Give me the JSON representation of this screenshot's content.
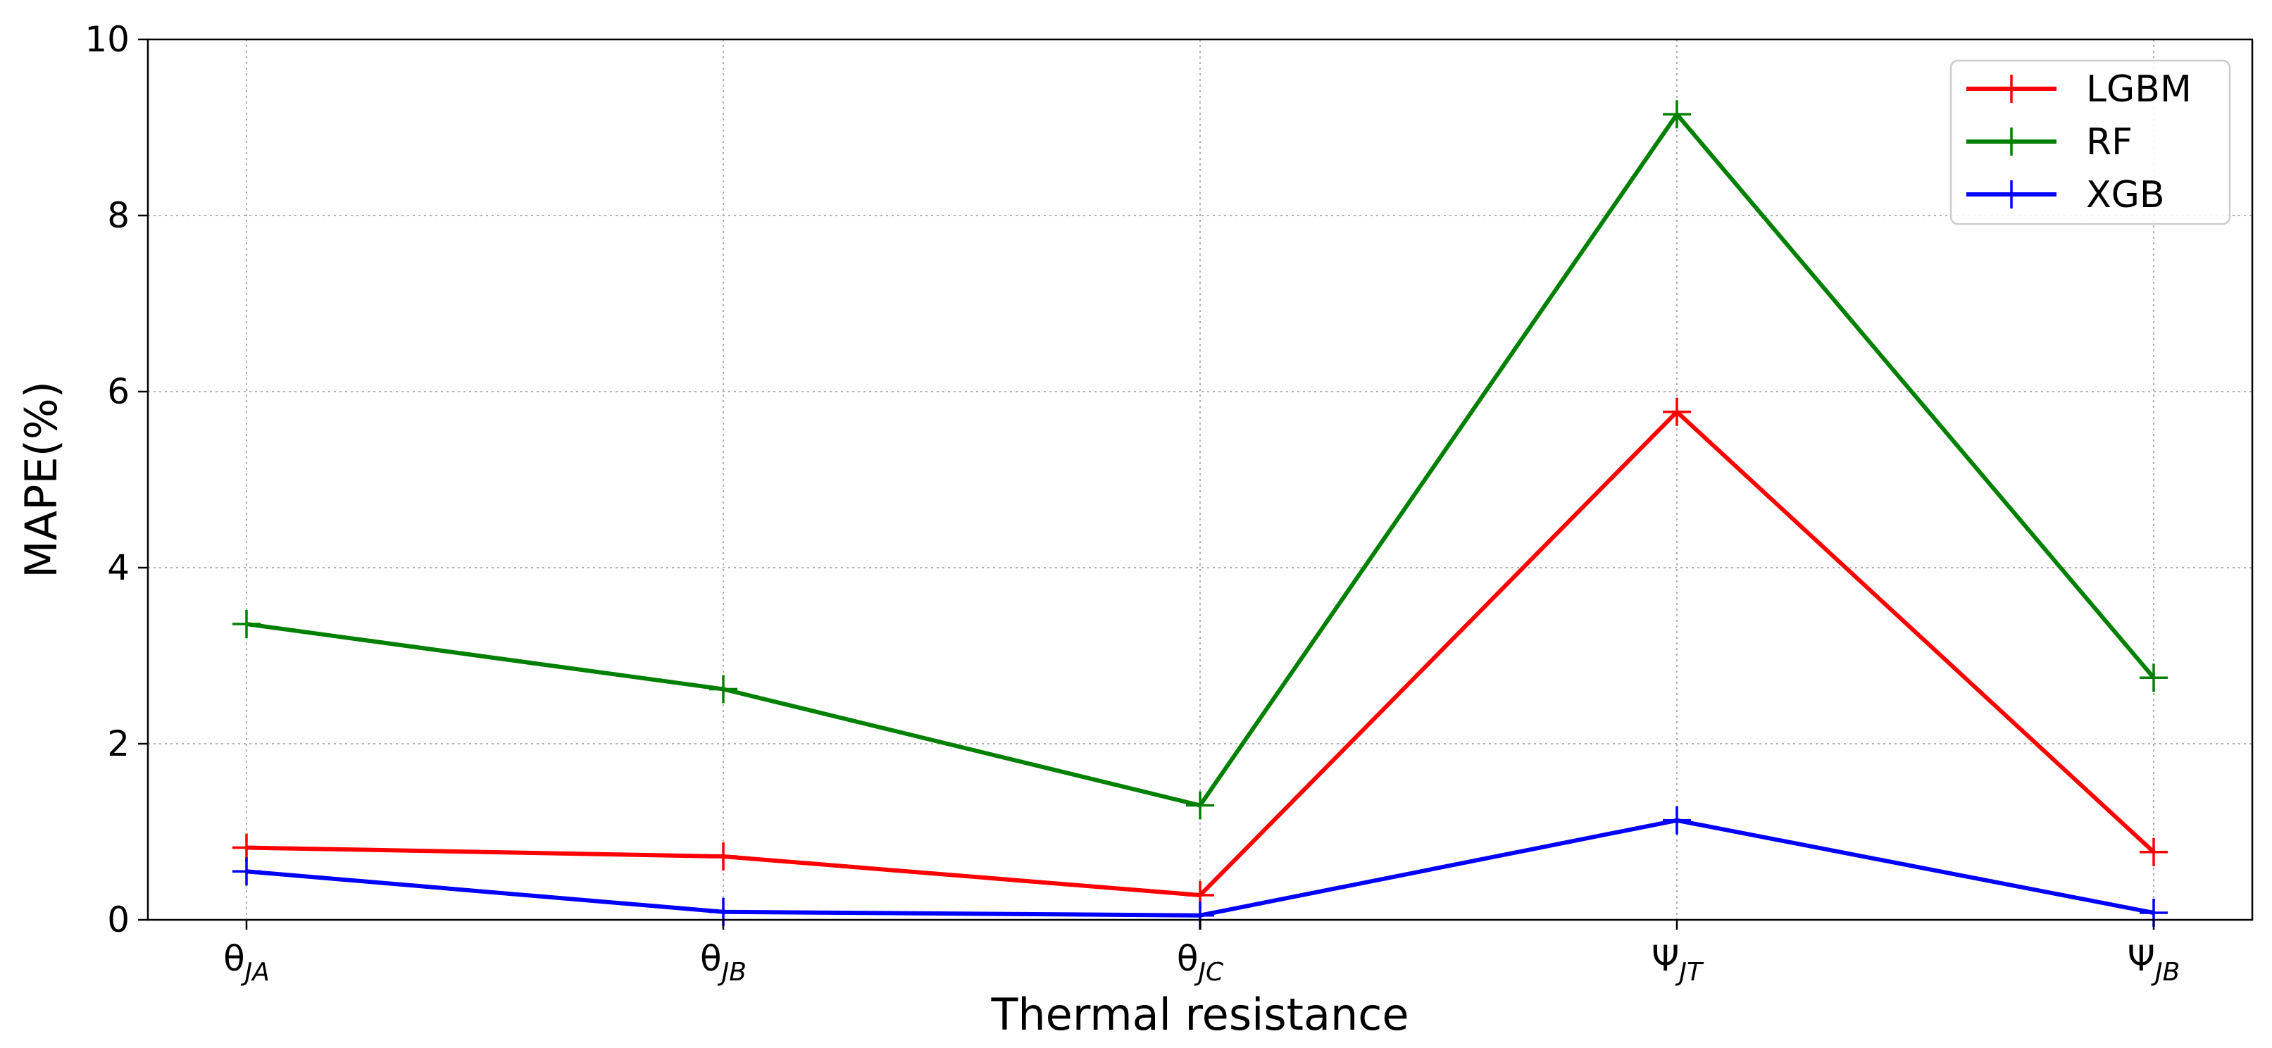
{
  "chart_data": {
    "type": "line",
    "title": "",
    "xlabel": "Thermal resistance",
    "ylabel": "MAPE(%)",
    "categories": [
      {
        "base": "θ",
        "sub": "JA"
      },
      {
        "base": "θ",
        "sub": "JB"
      },
      {
        "base": "θ",
        "sub": "JC"
      },
      {
        "base": "Ψ",
        "sub": "JT"
      },
      {
        "base": "Ψ",
        "sub": "JB"
      }
    ],
    "ylim": [
      0,
      10
    ],
    "yticks": [
      0,
      2,
      4,
      6,
      8,
      10
    ],
    "ytick_labels": [
      "0",
      "2",
      "4",
      "6",
      "8",
      "10"
    ],
    "grid": true,
    "legend_position": "top-right",
    "marker": "+",
    "series": [
      {
        "name": "LGBM",
        "color": "#ff0000",
        "values": [
          0.82,
          0.72,
          0.28,
          5.77,
          0.77
        ]
      },
      {
        "name": "RF",
        "color": "#008000",
        "values": [
          3.36,
          2.62,
          1.3,
          9.15,
          2.75
        ]
      },
      {
        "name": "XGB",
        "color": "#0000ff",
        "values": [
          0.55,
          0.09,
          0.05,
          1.13,
          0.08
        ]
      }
    ]
  }
}
